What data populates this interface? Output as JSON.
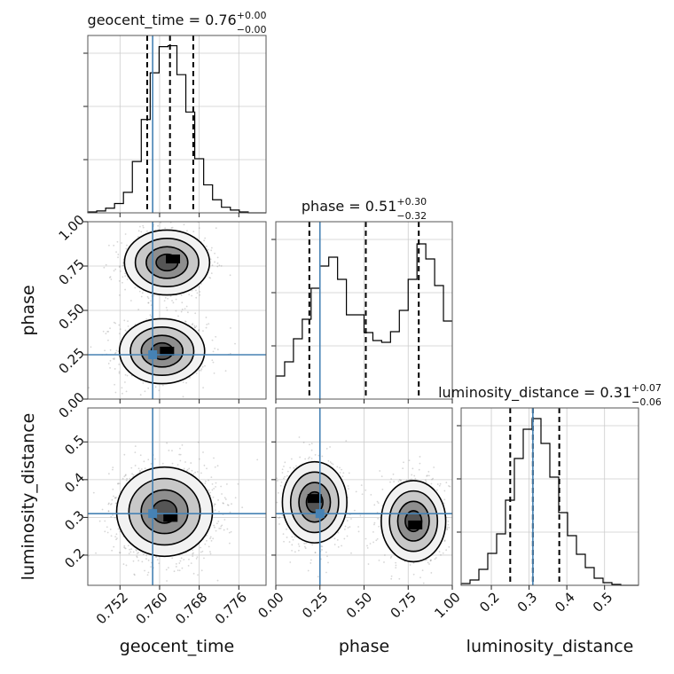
{
  "chart_data": {
    "type": "corner",
    "parameters": [
      {
        "key": "geocent_time",
        "label": "geocent_time",
        "title": {
          "main": "geocent_time = 0.76",
          "plus": "+0.00",
          "minus": "−0.00"
        },
        "range": [
          0.7455,
          0.7815
        ],
        "ticks": [
          0.752,
          0.76,
          0.768,
          0.776
        ],
        "tick_labels": [
          "0.752",
          "0.760",
          "0.768",
          "0.776"
        ],
        "quantiles": [
          0.7575,
          0.7621,
          0.7668
        ],
        "truth": 0.7586,
        "hist_edges_x": [
          0.7455,
          0.7473,
          0.7491,
          0.7509,
          0.7527,
          0.7545,
          0.7563,
          0.7581,
          0.7599,
          0.7617,
          0.7635,
          0.7653,
          0.7671,
          0.7689,
          0.7707,
          0.7725,
          0.7743,
          0.7761,
          0.7779,
          0.7797,
          0.7815
        ],
        "hist_counts": [
          1,
          2,
          5,
          10,
          22,
          55,
          100,
          150,
          178,
          179,
          148,
          108,
          58,
          30,
          14,
          6,
          3,
          1,
          0,
          0
        ],
        "hist_ymax": 190
      },
      {
        "key": "phase",
        "label": "phase",
        "title": {
          "main": "phase = 0.51",
          "plus": "+0.30",
          "minus": "−0.32"
        },
        "range": [
          0.0,
          1.0
        ],
        "ticks": [
          0.0,
          0.25,
          0.5,
          0.75,
          1.0
        ],
        "tick_labels": [
          "0.00",
          "0.25",
          "0.50",
          "0.75",
          "1.00"
        ],
        "quantiles": [
          0.19,
          0.51,
          0.81
        ],
        "truth": 0.25,
        "hist_counts": [
          26,
          42,
          68,
          90,
          125,
          150,
          160,
          135,
          95,
          95,
          75,
          66,
          64,
          76,
          100,
          135,
          175,
          158,
          128,
          88
        ],
        "hist_ymax": 200
      },
      {
        "key": "luminosity_distance",
        "label": "luminosity_distance",
        "title": {
          "main": "luminosity_distance = 0.31",
          "plus": "+0.07",
          "minus": "−0.06"
        },
        "range": [
          0.12,
          0.59
        ],
        "ticks": [
          0.2,
          0.3,
          0.4,
          0.5
        ],
        "tick_labels": [
          "0.2",
          "0.3",
          "0.4",
          "0.5"
        ],
        "quantiles": [
          0.25,
          0.31,
          0.38
        ],
        "truth": 0.31,
        "hist_counts": [
          2,
          6,
          18,
          36,
          58,
          96,
          143,
          176,
          188,
          160,
          122,
          82,
          56,
          35,
          20,
          8,
          3,
          1,
          0,
          0
        ],
        "hist_ymax": 200
      }
    ],
    "pairs": [
      {
        "x": "geocent_time",
        "y": "phase",
        "modes": [
          {
            "cx": 0.7615,
            "cy": 0.77,
            "sx": 0.004,
            "sy": 0.085,
            "peak": [
              0.7627,
              0.79
            ]
          },
          {
            "cx": 0.7605,
            "cy": 0.27,
            "sx": 0.004,
            "sy": 0.085,
            "peak": [
              0.7615,
              0.27
            ]
          }
        ],
        "contour_levels_sigma": [
          0.55,
          1.05,
          1.6,
          2.15
        ],
        "truth": [
          0.7586,
          0.25
        ]
      },
      {
        "x": "geocent_time",
        "y": "luminosity_distance",
        "modes": [
          {
            "cx": 0.761,
            "cy": 0.315,
            "sx": 0.0045,
            "sy": 0.055,
            "peak": [
              0.7622,
              0.3
            ]
          }
        ],
        "contour_levels_sigma": [
          0.55,
          1.05,
          1.6,
          2.15
        ],
        "truth": [
          0.7586,
          0.31
        ]
      },
      {
        "x": "phase",
        "y": "luminosity_distance",
        "modes": [
          {
            "cx": 0.22,
            "cy": 0.34,
            "sx": 0.085,
            "sy": 0.05,
            "peak": [
              0.22,
              0.35
            ]
          },
          {
            "cx": 0.78,
            "cy": 0.29,
            "sx": 0.085,
            "sy": 0.05,
            "peak": [
              0.79,
              0.28
            ]
          }
        ],
        "contour_levels_sigma": [
          0.55,
          1.05,
          1.6,
          2.15
        ],
        "truth": [
          0.25,
          0.31
        ]
      }
    ],
    "truth_color": "#4682b4",
    "grid": true
  }
}
